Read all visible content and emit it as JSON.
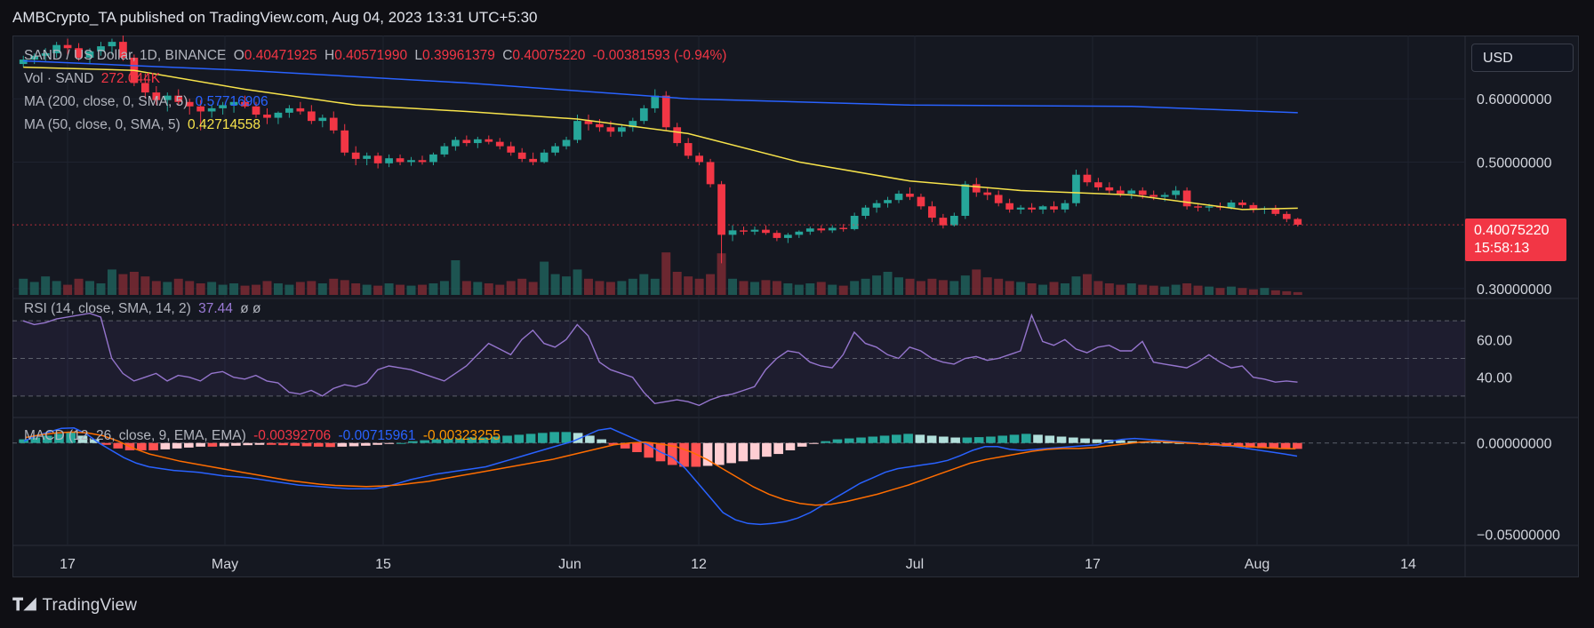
{
  "header": {
    "publisher": "AMBCrypto_TA published on TradingView.com, Aug 04, 2023 13:31 UTC+5:30"
  },
  "currency_button": "USD",
  "legend": {
    "symbol": "SAND / US Dollar, 1D, BINANCE",
    "o_label": "O",
    "o": "0.40471925",
    "h_label": "H",
    "h": "0.40571990",
    "l_label": "L",
    "l": "0.39961379",
    "c_label": "C",
    "c": "0.40075220",
    "change": "-0.00381593 (-0.94%)",
    "vol_label": "Vol · SAND",
    "vol": "272.044K",
    "ma200_label": "MA (200, close, 0, SMA, 5)",
    "ma200": "0.57716906",
    "ma50_label": "MA (50, close, 0, SMA, 5)",
    "ma50": "0.42714558",
    "rsi_label": "RSI (14, close, SMA, 14, 2)",
    "rsi": "37.44",
    "rsi_extra": "ø  ø",
    "macd_label": "MACD (12, 26, close, 9, EMA, EMA)",
    "macd": "-0.00392706",
    "macd_signal": "-0.00715961",
    "macd_hist": "-0.00323255"
  },
  "price_tag": {
    "price": "0.40075220",
    "countdown": "15:58:13"
  },
  "footer": {
    "brand": "TradingView"
  },
  "colors": {
    "up": "#26a69a",
    "down": "#f23645",
    "ma200": "#2962ff",
    "ma50": "#f7e34b",
    "rsi": "#9575cd",
    "macd": "#2962ff",
    "signal": "#ff6d00",
    "hist_up_strong": "#26a69a",
    "hist_up_weak": "#b2dfdb",
    "hist_down_strong": "#ff5252",
    "hist_down_weak": "#ffcdd2"
  },
  "chart_data": {
    "type": "candlestick",
    "symbol": "SAND / US Dollar",
    "x_ticks": [
      "17",
      "May",
      "15",
      "Jun",
      "12",
      "Jul",
      "17",
      "Aug",
      "14"
    ],
    "price_axis": {
      "ticks": [
        "0.60000000",
        "0.50000000",
        "0.30000000"
      ],
      "ylim": [
        0.29,
        0.7
      ]
    },
    "rsi_axis": {
      "ticks": [
        "60.00",
        "40.00"
      ],
      "band": [
        30,
        70
      ],
      "ylim": [
        20,
        80
      ]
    },
    "macd_axis": {
      "ticks": [
        "0.00000000",
        "−0.05000000"
      ],
      "ylim": [
        -0.055,
        0.012
      ]
    },
    "ohlc": [
      [
        0.655,
        0.668,
        0.65,
        0.662
      ],
      [
        0.662,
        0.672,
        0.655,
        0.668
      ],
      [
        0.668,
        0.68,
        0.66,
        0.672
      ],
      [
        0.672,
        0.69,
        0.665,
        0.685
      ],
      [
        0.685,
        0.695,
        0.67,
        0.68
      ],
      [
        0.68,
        0.688,
        0.66,
        0.665
      ],
      [
        0.665,
        0.68,
        0.655,
        0.675
      ],
      [
        0.675,
        0.69,
        0.668,
        0.683
      ],
      [
        0.683,
        0.695,
        0.67,
        0.69
      ],
      [
        0.69,
        0.7,
        0.66,
        0.665
      ],
      [
        0.665,
        0.67,
        0.62,
        0.625
      ],
      [
        0.625,
        0.64,
        0.6,
        0.61
      ],
      [
        0.61,
        0.62,
        0.59,
        0.598
      ],
      [
        0.598,
        0.61,
        0.58,
        0.605
      ],
      [
        0.605,
        0.615,
        0.59,
        0.595
      ],
      [
        0.595,
        0.6,
        0.575,
        0.588
      ],
      [
        0.588,
        0.598,
        0.55,
        0.58
      ],
      [
        0.58,
        0.59,
        0.57,
        0.585
      ],
      [
        0.585,
        0.595,
        0.575,
        0.59
      ],
      [
        0.59,
        0.6,
        0.578,
        0.595
      ],
      [
        0.595,
        0.605,
        0.585,
        0.588
      ],
      [
        0.588,
        0.595,
        0.57,
        0.575
      ],
      [
        0.575,
        0.585,
        0.56,
        0.57
      ],
      [
        0.57,
        0.58,
        0.56,
        0.578
      ],
      [
        0.578,
        0.59,
        0.57,
        0.585
      ],
      [
        0.585,
        0.595,
        0.575,
        0.58
      ],
      [
        0.58,
        0.59,
        0.56,
        0.565
      ],
      [
        0.565,
        0.575,
        0.555,
        0.57
      ],
      [
        0.57,
        0.58,
        0.545,
        0.55
      ],
      [
        0.55,
        0.56,
        0.51,
        0.515
      ],
      [
        0.515,
        0.525,
        0.495,
        0.505
      ],
      [
        0.505,
        0.515,
        0.495,
        0.51
      ],
      [
        0.51,
        0.515,
        0.49,
        0.498
      ],
      [
        0.498,
        0.512,
        0.492,
        0.506
      ],
      [
        0.506,
        0.512,
        0.495,
        0.5
      ],
      [
        0.5,
        0.508,
        0.494,
        0.503
      ],
      [
        0.503,
        0.51,
        0.496,
        0.5
      ],
      [
        0.5,
        0.515,
        0.495,
        0.512
      ],
      [
        0.512,
        0.53,
        0.508,
        0.525
      ],
      [
        0.525,
        0.54,
        0.518,
        0.535
      ],
      [
        0.535,
        0.542,
        0.525,
        0.53
      ],
      [
        0.53,
        0.54,
        0.522,
        0.536
      ],
      [
        0.536,
        0.542,
        0.528,
        0.532
      ],
      [
        0.532,
        0.538,
        0.52,
        0.525
      ],
      [
        0.525,
        0.532,
        0.51,
        0.515
      ],
      [
        0.515,
        0.522,
        0.5,
        0.505
      ],
      [
        0.505,
        0.515,
        0.495,
        0.5
      ],
      [
        0.5,
        0.52,
        0.498,
        0.515
      ],
      [
        0.515,
        0.53,
        0.51,
        0.525
      ],
      [
        0.525,
        0.54,
        0.52,
        0.535
      ],
      [
        0.535,
        0.575,
        0.53,
        0.565
      ],
      [
        0.565,
        0.575,
        0.55,
        0.56
      ],
      [
        0.56,
        0.568,
        0.548,
        0.555
      ],
      [
        0.555,
        0.565,
        0.54,
        0.548
      ],
      [
        0.548,
        0.56,
        0.54,
        0.555
      ],
      [
        0.555,
        0.57,
        0.548,
        0.565
      ],
      [
        0.565,
        0.59,
        0.56,
        0.585
      ],
      [
        0.585,
        0.615,
        0.578,
        0.605
      ],
      [
        0.605,
        0.612,
        0.55,
        0.555
      ],
      [
        0.555,
        0.562,
        0.525,
        0.53
      ],
      [
        0.53,
        0.538,
        0.505,
        0.51
      ],
      [
        0.51,
        0.515,
        0.495,
        0.5
      ],
      [
        0.5,
        0.505,
        0.46,
        0.465
      ],
      [
        0.465,
        0.47,
        0.34,
        0.385
      ],
      [
        0.385,
        0.4,
        0.375,
        0.392
      ],
      [
        0.392,
        0.398,
        0.385,
        0.39
      ],
      [
        0.39,
        0.398,
        0.385,
        0.393
      ],
      [
        0.393,
        0.4,
        0.385,
        0.388
      ],
      [
        0.388,
        0.392,
        0.375,
        0.38
      ],
      [
        0.38,
        0.388,
        0.372,
        0.385
      ],
      [
        0.385,
        0.392,
        0.38,
        0.39
      ],
      [
        0.39,
        0.398,
        0.385,
        0.395
      ],
      [
        0.395,
        0.4,
        0.388,
        0.392
      ],
      [
        0.392,
        0.4,
        0.388,
        0.396
      ],
      [
        0.396,
        0.402,
        0.39,
        0.394
      ],
      [
        0.394,
        0.42,
        0.392,
        0.415
      ],
      [
        0.415,
        0.432,
        0.41,
        0.428
      ],
      [
        0.428,
        0.44,
        0.42,
        0.435
      ],
      [
        0.435,
        0.445,
        0.428,
        0.44
      ],
      [
        0.44,
        0.455,
        0.435,
        0.45
      ],
      [
        0.45,
        0.46,
        0.44,
        0.445
      ],
      [
        0.445,
        0.45,
        0.425,
        0.43
      ],
      [
        0.43,
        0.438,
        0.405,
        0.412
      ],
      [
        0.412,
        0.418,
        0.395,
        0.4
      ],
      [
        0.4,
        0.42,
        0.398,
        0.415
      ],
      [
        0.415,
        0.47,
        0.41,
        0.465
      ],
      [
        0.465,
        0.475,
        0.445,
        0.452
      ],
      [
        0.452,
        0.46,
        0.44,
        0.448
      ],
      [
        0.448,
        0.455,
        0.43,
        0.435
      ],
      [
        0.435,
        0.442,
        0.42,
        0.425
      ],
      [
        0.425,
        0.432,
        0.418,
        0.428
      ],
      [
        0.428,
        0.435,
        0.42,
        0.425
      ],
      [
        0.425,
        0.432,
        0.418,
        0.43
      ],
      [
        0.43,
        0.438,
        0.42,
        0.425
      ],
      [
        0.425,
        0.44,
        0.42,
        0.435
      ],
      [
        0.435,
        0.488,
        0.43,
        0.48
      ],
      [
        0.48,
        0.49,
        0.462,
        0.468
      ],
      [
        0.468,
        0.475,
        0.455,
        0.46
      ],
      [
        0.46,
        0.468,
        0.45,
        0.455
      ],
      [
        0.455,
        0.462,
        0.445,
        0.45
      ],
      [
        0.45,
        0.458,
        0.442,
        0.455
      ],
      [
        0.455,
        0.46,
        0.442,
        0.448
      ],
      [
        0.448,
        0.455,
        0.44,
        0.445
      ],
      [
        0.445,
        0.452,
        0.438,
        0.448
      ],
      [
        0.448,
        0.462,
        0.442,
        0.455
      ],
      [
        0.455,
        0.46,
        0.425,
        0.43
      ],
      [
        0.43,
        0.435,
        0.422,
        0.428
      ],
      [
        0.428,
        0.434,
        0.422,
        0.43
      ],
      [
        0.43,
        0.436,
        0.424,
        0.428
      ],
      [
        0.428,
        0.44,
        0.425,
        0.436
      ],
      [
        0.436,
        0.44,
        0.428,
        0.432
      ],
      [
        0.432,
        0.436,
        0.42,
        0.425
      ],
      [
        0.425,
        0.43,
        0.418,
        0.427
      ],
      [
        0.427,
        0.432,
        0.415,
        0.418
      ],
      [
        0.418,
        0.422,
        0.405,
        0.41
      ],
      [
        0.41,
        0.412,
        0.398,
        0.401
      ]
    ],
    "volume": [
      0.35,
      0.28,
      0.4,
      0.3,
      0.22,
      0.35,
      0.3,
      0.25,
      0.55,
      0.45,
      0.5,
      0.4,
      0.3,
      0.28,
      0.35,
      0.3,
      0.25,
      0.28,
      0.22,
      0.25,
      0.2,
      0.22,
      0.3,
      0.25,
      0.22,
      0.28,
      0.3,
      0.25,
      0.35,
      0.32,
      0.25,
      0.22,
      0.2,
      0.25,
      0.22,
      0.2,
      0.22,
      0.25,
      0.3,
      0.75,
      0.3,
      0.28,
      0.25,
      0.22,
      0.3,
      0.35,
      0.28,
      0.72,
      0.45,
      0.4,
      0.55,
      0.35,
      0.3,
      0.28,
      0.3,
      0.35,
      0.45,
      0.35,
      0.92,
      0.5,
      0.4,
      0.35,
      0.45,
      0.9,
      0.35,
      0.3,
      0.28,
      0.32,
      0.3,
      0.25,
      0.22,
      0.25,
      0.28,
      0.22,
      0.2,
      0.3,
      0.35,
      0.42,
      0.5,
      0.38,
      0.35,
      0.3,
      0.35,
      0.32,
      0.3,
      0.42,
      0.55,
      0.38,
      0.35,
      0.3,
      0.28,
      0.25,
      0.22,
      0.28,
      0.25,
      0.4,
      0.45,
      0.3,
      0.25,
      0.22,
      0.25,
      0.22,
      0.2,
      0.18,
      0.22,
      0.25,
      0.2,
      0.18,
      0.15,
      0.18,
      0.15,
      0.12,
      0.15,
      0.1,
      0.08,
      0.06
    ],
    "ma200": {
      "x": [
        0,
        20,
        40,
        60,
        80,
        100,
        115
      ],
      "values": [
        0.66,
        0.645,
        0.625,
        0.6,
        0.59,
        0.588,
        0.578
      ]
    },
    "ma50": {
      "x": [
        0,
        10,
        20,
        30,
        40,
        50,
        60,
        70,
        80,
        90,
        100,
        110,
        115
      ],
      "values": [
        0.65,
        0.645,
        0.615,
        0.59,
        0.58,
        0.568,
        0.545,
        0.5,
        0.47,
        0.455,
        0.448,
        0.425,
        0.427
      ]
    },
    "rsi": [
      70,
      68,
      69,
      71,
      72,
      73,
      74,
      72,
      50,
      42,
      38,
      40,
      42,
      38,
      41,
      40,
      38,
      42,
      43,
      40,
      39,
      41,
      38,
      37,
      32,
      31,
      33,
      30,
      34,
      36,
      35,
      37,
      44,
      46,
      45,
      44,
      42,
      40,
      38,
      42,
      46,
      52,
      58,
      55,
      52,
      60,
      65,
      58,
      56,
      60,
      68,
      62,
      48,
      44,
      42,
      40,
      32,
      26,
      27,
      28,
      27,
      25,
      28,
      30,
      31,
      33,
      35,
      44,
      50,
      54,
      53,
      48,
      46,
      45,
      52,
      64,
      58,
      56,
      52,
      50,
      56,
      54,
      50,
      48,
      47,
      50,
      51,
      49,
      50,
      52,
      54,
      73,
      59,
      57,
      60,
      55,
      53,
      56,
      57,
      54,
      54,
      59,
      48,
      47,
      46,
      45,
      48,
      52,
      48,
      45,
      46,
      40,
      39,
      37.4,
      38,
      37.4
    ],
    "macd_line": [
      0.001,
      0.004,
      0.006,
      0.008,
      0.0082,
      0.005,
      0.0,
      -0.004,
      -0.008,
      -0.011,
      -0.013,
      -0.014,
      -0.015,
      -0.0155,
      -0.016,
      -0.017,
      -0.018,
      -0.0185,
      -0.019,
      -0.02,
      -0.021,
      -0.022,
      -0.023,
      -0.0235,
      -0.024,
      -0.0245,
      -0.025,
      -0.025,
      -0.025,
      -0.024,
      -0.022,
      -0.02,
      -0.0185,
      -0.017,
      -0.016,
      -0.015,
      -0.014,
      -0.013,
      -0.011,
      -0.009,
      -0.007,
      -0.005,
      -0.003,
      -0.001,
      0.001,
      0.004,
      0.007,
      0.008,
      0.005,
      0.002,
      -0.001,
      -0.005,
      -0.008,
      -0.014,
      -0.022,
      -0.03,
      -0.038,
      -0.042,
      -0.044,
      -0.0445,
      -0.044,
      -0.043,
      -0.041,
      -0.038,
      -0.034,
      -0.03,
      -0.026,
      -0.022,
      -0.019,
      -0.016,
      -0.014,
      -0.013,
      -0.012,
      -0.011,
      -0.0095,
      -0.007,
      -0.004,
      -0.002,
      -0.002,
      -0.0035,
      -0.004,
      -0.0035,
      -0.003,
      -0.0025,
      -0.002,
      -0.0015,
      -0.001,
      0.001,
      0.002,
      0.0025,
      0.002,
      0.0015,
      0.001,
      0.0005,
      0.0,
      -0.001,
      -0.0015,
      -0.002,
      -0.003,
      -0.004,
      -0.005,
      -0.006,
      -0.0072
    ],
    "signal_line": [
      0.003,
      0.0045,
      0.0055,
      0.006,
      0.0055,
      0.004,
      0.001,
      -0.003,
      -0.006,
      -0.008,
      -0.01,
      -0.0115,
      -0.013,
      -0.0145,
      -0.016,
      -0.0175,
      -0.019,
      -0.0205,
      -0.0215,
      -0.0225,
      -0.0232,
      -0.0235,
      -0.0238,
      -0.0235,
      -0.023,
      -0.022,
      -0.021,
      -0.0195,
      -0.018,
      -0.0165,
      -0.015,
      -0.0135,
      -0.012,
      -0.0105,
      -0.009,
      -0.007,
      -0.005,
      -0.003,
      -0.001,
      0.0,
      0.0005,
      -0.0005,
      -0.002,
      -0.005,
      -0.009,
      -0.014,
      -0.019,
      -0.024,
      -0.028,
      -0.031,
      -0.033,
      -0.034,
      -0.0335,
      -0.032,
      -0.03,
      -0.028,
      -0.0255,
      -0.023,
      -0.02,
      -0.017,
      -0.014,
      -0.011,
      -0.009,
      -0.0075,
      -0.006,
      -0.0045,
      -0.0035,
      -0.003,
      -0.003,
      -0.0025,
      -0.0015,
      -0.0005,
      0.0005,
      0.001,
      0.0005,
      0.0,
      -0.0005,
      -0.001,
      -0.0015,
      -0.002,
      -0.0025,
      -0.003,
      -0.0032
    ],
    "macd_hist": [
      0.002,
      0.003,
      0.004,
      0.005,
      0.006,
      0.004,
      0.002,
      -0.001,
      -0.003,
      -0.004,
      -0.004,
      -0.004,
      -0.0035,
      -0.003,
      -0.0025,
      -0.002,
      -0.002,
      -0.0018,
      -0.0015,
      -0.0012,
      -0.001,
      -0.001,
      -0.0012,
      -0.0015,
      -0.0018,
      -0.002,
      -0.0022,
      -0.002,
      -0.0018,
      -0.0015,
      -0.001,
      -0.0005,
      0.0,
      0.001,
      0.0015,
      0.002,
      0.0022,
      0.0025,
      0.003,
      0.003,
      0.0035,
      0.004,
      0.0045,
      0.005,
      0.0055,
      0.006,
      0.006,
      0.0055,
      0.004,
      0.002,
      -0.001,
      -0.003,
      -0.005,
      -0.008,
      -0.01,
      -0.012,
      -0.013,
      -0.013,
      -0.0125,
      -0.012,
      -0.011,
      -0.01,
      -0.009,
      -0.0075,
      -0.006,
      -0.004,
      -0.002,
      -0.0005,
      0.001,
      0.002,
      0.0025,
      0.003,
      0.0035,
      0.004,
      0.0045,
      0.005,
      0.0045,
      0.004,
      0.0035,
      0.003,
      0.003,
      0.0032,
      0.0035,
      0.004,
      0.0045,
      0.005,
      0.0045,
      0.004,
      0.0035,
      0.003,
      0.0025,
      0.002,
      0.0018,
      0.0015,
      0.001,
      0.0008,
      0.0005,
      0.0003,
      0.0,
      -0.0005,
      -0.001,
      -0.0015,
      -0.002,
      -0.0022,
      -0.0025,
      -0.0028,
      -0.003,
      -0.0032,
      -0.0032
    ]
  }
}
